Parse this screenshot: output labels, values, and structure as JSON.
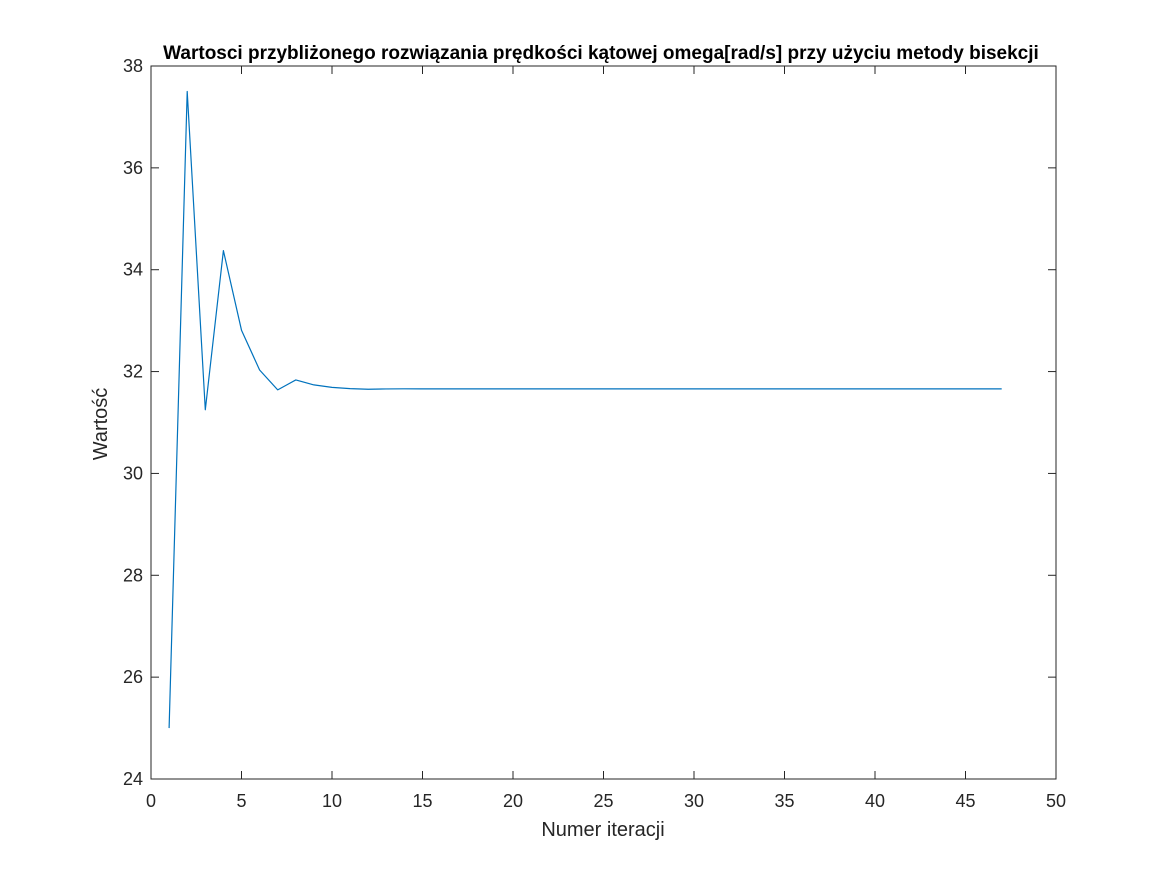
{
  "chart_data": {
    "type": "line",
    "title": "Wartosci przybliżonego rozwiązania prędkości kątowej omega[rad/s] przy użyciu metody bisekcji",
    "xlabel": "Numer iteracji",
    "ylabel": "Wartość",
    "xlim": [
      0,
      50
    ],
    "ylim": [
      24,
      38
    ],
    "xticks": [
      0,
      5,
      10,
      15,
      20,
      25,
      30,
      35,
      40,
      45,
      50
    ],
    "yticks": [
      24,
      26,
      28,
      30,
      32,
      34,
      36,
      38
    ],
    "grid": false,
    "colors": {
      "line": "#0072BD",
      "axes": "#262626"
    },
    "series": [
      {
        "x": [
          1,
          2,
          3,
          4,
          5,
          6,
          7,
          8,
          9,
          10,
          11,
          12,
          13,
          14,
          15,
          16,
          17,
          18,
          19,
          20,
          21,
          22,
          23,
          24,
          25,
          26,
          27,
          28,
          29,
          30,
          31,
          32,
          33,
          34,
          35,
          36,
          37,
          38,
          39,
          40,
          41,
          42,
          43,
          44,
          45,
          46,
          47
        ],
        "values": [
          25.0,
          37.5,
          31.25,
          34.375,
          32.8125,
          32.03125,
          31.640625,
          31.8359,
          31.7383,
          31.6895,
          31.665,
          31.6528,
          31.6589,
          31.662,
          31.6604,
          31.6596,
          31.66,
          31.6602,
          31.6601,
          31.6601,
          31.6601,
          31.6601,
          31.6601,
          31.6601,
          31.6601,
          31.6601,
          31.6601,
          31.6601,
          31.6601,
          31.6601,
          31.6601,
          31.6601,
          31.6601,
          31.6601,
          31.6601,
          31.6601,
          31.6601,
          31.6601,
          31.6601,
          31.6601,
          31.6601,
          31.6601,
          31.6601,
          31.6601,
          31.6601,
          31.6601,
          31.6601
        ]
      }
    ]
  }
}
